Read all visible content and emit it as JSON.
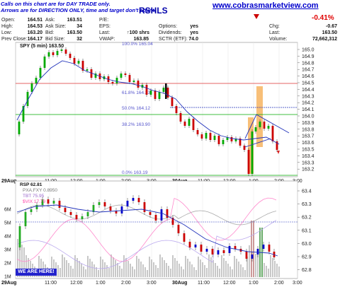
{
  "notice": {
    "line1": "Calls on this chart are for DAY TRADE only.",
    "line2": "Arrows are for DIRECTION ONLY, time and target don't count."
  },
  "symbol_fragment": "RSHLS",
  "site": "www.cobrasmarketview.com",
  "quote": {
    "open_label": "Open:",
    "open": "164.51",
    "high_label": "High:",
    "high": "164.53",
    "low_label": "Low:",
    "low": "163.20",
    "prev_label": "Prev Close:",
    "prev": "164.17",
    "ask_label": "Ask:",
    "ask": "163.51",
    "asksize_label": "Ask Size:",
    "asksize": "34",
    "bid_label": "Bid:",
    "bid": "163.50",
    "bidsize_label": "Bid Size:",
    "bidsize": "32",
    "pe_label": "P/E:",
    "pe": "",
    "eps_label": "EPS:",
    "eps": "",
    "last_label": "Last:",
    "lastshares": "100 shrs",
    "vwap_label": "VWAP:",
    "vwap": "163.85",
    "options_label": "Options:",
    "options": "yes",
    "dividends_label": "Dividends:",
    "dividends": "yes",
    "sctr_label": "SCTR (ETF):",
    "sctr": "74.0",
    "chgpct": "-0.41%",
    "chg_label": "Chg:",
    "chg": "-0.67",
    "last2_label": "Last:",
    "last2": "163.50",
    "volume_label": "Volume:",
    "volume": "72,662,312"
  },
  "main_panel": {
    "series_label": "SPY (5 min) 163.50",
    "y_ticks": [
      "165.0",
      "164.9",
      "164.8",
      "164.7",
      "164.6",
      "164.5",
      "164.4",
      "164.3",
      "164.2",
      "164.1",
      "164.0",
      "163.9",
      "163.8",
      "163.7",
      "163.6",
      "163.5",
      "163.4",
      "163.3",
      "163.2"
    ],
    "fib_labels": [
      "100.0% 165.04",
      "61.8% 164.33",
      "50.0% 164.12",
      "38.2% 163.90",
      "0.0% 163.19"
    ],
    "x_labels": [
      "29Aug",
      "11:00",
      "12:00",
      "1:00",
      "2:00",
      "3:00",
      "30Aug",
      "11:00",
      "12:00",
      "1:00",
      "2:00",
      "3:00"
    ]
  },
  "lower_panel": {
    "legend1": "RSP 62.81",
    "legend2": "PXA.FXY 0.8950",
    "legend3": "TBT 75.95",
    "legend4": "$VIX 17.79",
    "vol_ticks": [
      "6M",
      "5M",
      "4M",
      "3M",
      "2M",
      "1M"
    ],
    "y_ticks": [
      "63.4",
      "63.3",
      "63.2",
      "63.1",
      "63.0",
      "62.9",
      "62.8"
    ],
    "x_labels": [
      "29Aug",
      "11:00",
      "12:00",
      "1:00",
      "2:00",
      "3:00",
      "30Aug",
      "11:00",
      "12:00",
      "1:00",
      "2:00",
      "3:00"
    ],
    "button": "WE ARE HERE!"
  },
  "colors": {
    "up": "#00aa00",
    "down": "#cc0000",
    "bg_notice": "#0000cc"
  }
}
